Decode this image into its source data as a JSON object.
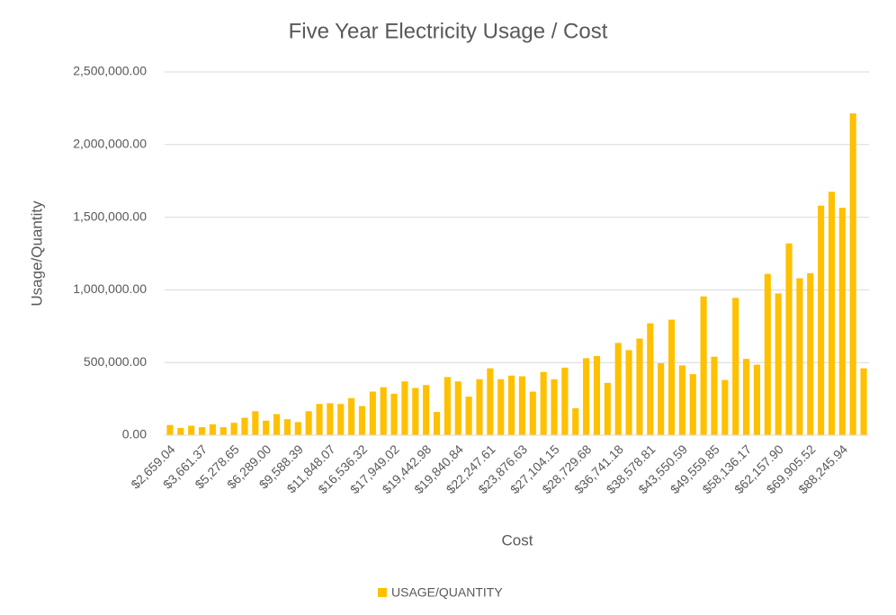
{
  "chart_data": {
    "type": "bar",
    "title": "Five Year Electricity Usage / Cost",
    "x_label": "Cost",
    "y_label": "Usage/Quantity",
    "legend": "bottom",
    "grid": true,
    "categories": [
      "$2,659.04",
      null,
      null,
      "$3,661.37",
      null,
      null,
      "$5,278.65",
      null,
      null,
      "$6,289.00",
      null,
      null,
      "$9,588.39",
      null,
      null,
      "$11,848.07",
      null,
      null,
      "$16,536.32",
      null,
      null,
      "$17,949.02",
      null,
      null,
      "$19,442.98",
      null,
      null,
      "$19,840.84",
      null,
      null,
      "$22,247.61",
      null,
      null,
      "$23,876.63",
      null,
      null,
      "$27,104.15",
      null,
      null,
      "$28,729.68",
      null,
      null,
      "$36,741.18",
      null,
      null,
      "$38,578.81",
      null,
      null,
      "$43,550.59",
      null,
      null,
      "$49,559.85",
      null,
      null,
      "$58,136.17",
      null,
      null,
      "$62,157.90",
      null,
      null,
      "$69,905.52",
      null,
      null,
      "$88,245.94",
      null,
      null
    ],
    "series": [
      {
        "name": "USAGE/QUANTITY",
        "color": "#FFC000",
        "values": [
          70000,
          50000,
          65000,
          55000,
          75000,
          55000,
          85000,
          120000,
          165000,
          100000,
          145000,
          110000,
          90000,
          165000,
          215000,
          220000,
          215000,
          255000,
          200000,
          300000,
          330000,
          285000,
          370000,
          325000,
          345000,
          160000,
          400000,
          370000,
          265000,
          385000,
          460000,
          385000,
          410000,
          405000,
          300000,
          435000,
          385000,
          465000,
          185000,
          530000,
          545000,
          360000,
          635000,
          585000,
          665000,
          770000,
          495000,
          795000,
          480000,
          420000,
          955000,
          540000,
          380000,
          945000,
          525000,
          485000,
          1110000,
          975000,
          1320000,
          1080000,
          1115000,
          1580000,
          1675000,
          1565000,
          2215000,
          460000
        ]
      }
    ],
    "ylim": [
      0,
      2500000
    ],
    "yticks": [
      {
        "value": 0,
        "label": "0.00"
      },
      {
        "value": 500000,
        "label": "500,000.00"
      },
      {
        "value": 1000000,
        "label": "1,000,000.00"
      },
      {
        "value": 1500000,
        "label": "1,500,000.00"
      },
      {
        "value": 2000000,
        "label": "2,000,000.00"
      },
      {
        "value": 2500000,
        "label": "2,500,000.00"
      }
    ]
  }
}
